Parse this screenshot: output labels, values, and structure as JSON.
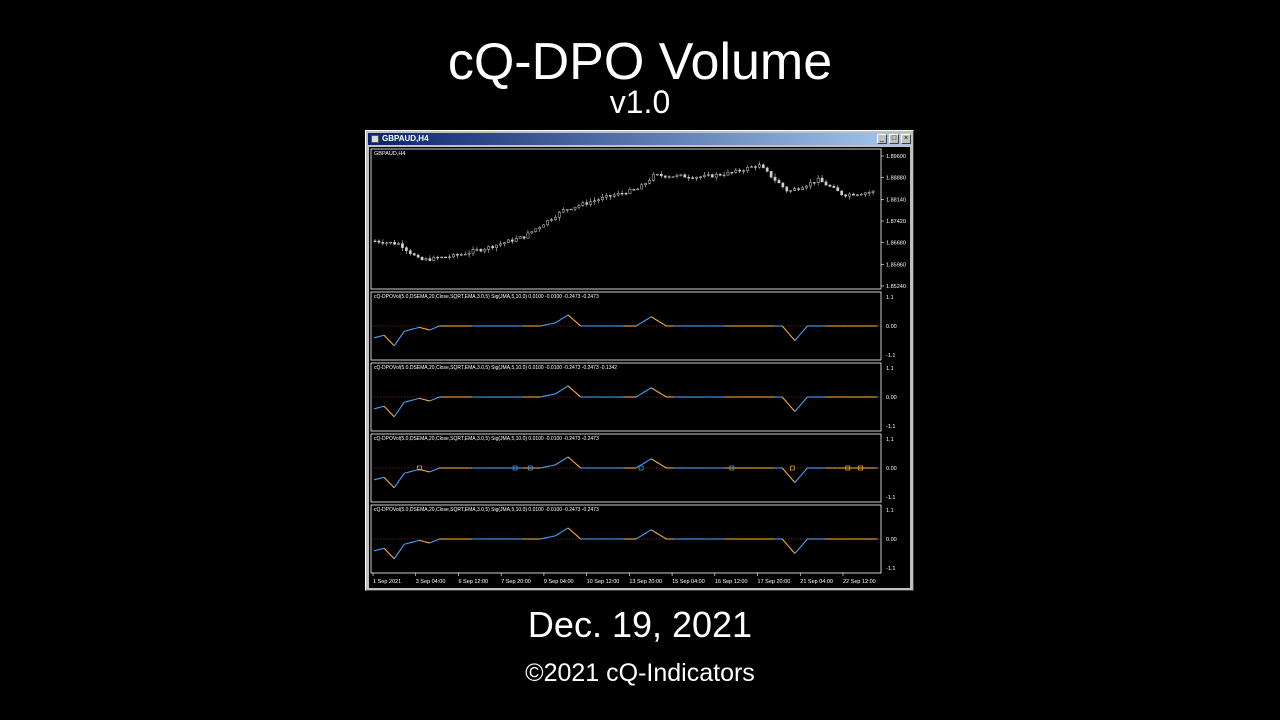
{
  "header": {
    "title": "cQ-DPO Volume",
    "version": "v1.0"
  },
  "footer": {
    "date": "Dec. 19, 2021",
    "copyright": "©2021 cQ-Indicators"
  },
  "window": {
    "title": "GBPAUD,H4",
    "minimize_glyph": "_",
    "maximize_glyph": "□",
    "close_glyph": "×",
    "price_pane": {
      "label": "GBPAUD,H4",
      "price_labels": [
        "1.89600",
        "1.88880",
        "1.88140",
        "1.87420",
        "1.86680",
        "1.85960",
        "1.85240"
      ]
    },
    "indicator_panes": [
      {
        "label": "cQ-DPOVol(5.0,DSEMA,20,Close,SQRT,EMA,3.0,5) Sig(JMA,5,10.0) 0.0100 -0.0100 -0.2473 -0.2473",
        "scale": [
          "1.1",
          "0.00",
          "-1.1"
        ]
      },
      {
        "label": "cQ-DPOVol(5.0,DSEMA,20,Close,SQRT,EMA,3.0,5) Sig(JMA,5,10.0) 0.0100 -0.0100 -0.2473 -0.2473 -0.1342",
        "scale": [
          "1.1",
          "0.00",
          "-1.1"
        ]
      },
      {
        "label": "cQ-DPOVol(5.0,DSEMA,20,Close,SQRT,EMA,3.0,5) Sig(JMA,5,10.0) 0.0100 -0.0100 -0.2473 -0.2473",
        "scale": [
          "1.1",
          "0.00",
          "-1.1"
        ]
      },
      {
        "label": "cQ-DPOVol(5.0,DSEMA,20,Close,SQRT,EMA,3.0,5) Sig(JMA,5,10.0) 0.0100 -0.0100 -0.2473 -0.2473",
        "scale": [
          "1.1",
          "0.00",
          "-1.1"
        ]
      }
    ],
    "time_labels": [
      "1 Sep 2021",
      "3 Sep 04:00",
      "6 Sep 12:00",
      "7 Sep 20:00",
      "9 Sep 04:00",
      "10 Sep 12:00",
      "13 Sep 20:00",
      "15 Sep 04:00",
      "16 Sep 12:00",
      "17 Sep 20:00",
      "21 Sep 04:00",
      "22 Sep 12:00"
    ]
  },
  "colors": {
    "up": "#4aa3ff",
    "down": "#ffb030",
    "zero_line": "#b04040",
    "candle": "#cfcfcf"
  }
}
